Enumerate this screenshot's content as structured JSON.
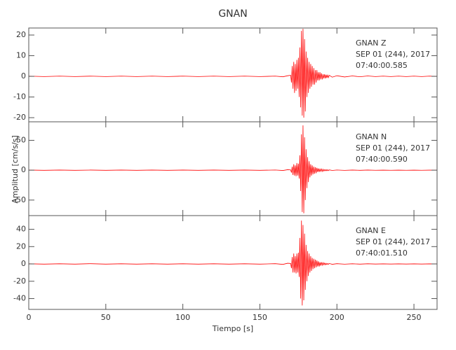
{
  "chart_data": [
    {
      "type": "line",
      "title": "GNAN",
      "annotations": [
        "GNAN   Z",
        "SEP 01 (244), 2017",
        "07:40:00.585"
      ],
      "x": [
        0,
        10,
        20,
        30,
        40,
        50,
        60,
        70,
        80,
        90,
        100,
        110,
        120,
        130,
        140,
        150,
        160,
        165,
        168,
        170,
        170.5,
        171,
        171.5,
        172,
        172.5,
        173,
        173.5,
        174,
        174.5,
        175,
        175.5,
        176,
        176.5,
        177,
        177.5,
        178,
        178.5,
        179,
        179.5,
        180,
        180.5,
        181,
        181.5,
        182,
        182.5,
        183,
        183.5,
        184,
        184.5,
        185,
        185.5,
        186,
        186.5,
        187,
        187.5,
        188,
        188.5,
        189,
        189.5,
        190,
        190.5,
        191,
        191.5,
        192,
        192.5,
        193,
        193.5,
        194,
        194.5,
        195,
        197,
        200,
        205,
        210,
        215,
        220,
        225,
        230,
        235,
        240,
        245,
        250,
        255,
        260,
        265
      ],
      "series": [
        {
          "color": "#ff0000",
          "values": [
            0.1,
            -0.1,
            0.1,
            -0.1,
            0.1,
            -0.1,
            0.1,
            -0.1,
            0.1,
            -0.1,
            0.1,
            -0.1,
            0.1,
            -0.1,
            0.1,
            -0.1,
            0.1,
            -0.2,
            0.3,
            0.5,
            -3,
            5,
            -6,
            7,
            -8,
            6,
            -7,
            8,
            -6,
            9,
            -10,
            14,
            -15,
            22,
            -19,
            23,
            -20,
            18,
            -17,
            12,
            -10,
            9,
            -8,
            7,
            -6,
            6,
            -5,
            5,
            -4,
            4,
            -4,
            3,
            -3,
            3,
            -2,
            2,
            -2,
            2,
            -1.5,
            1.5,
            -1.5,
            1,
            -1,
            1,
            -1,
            0.8,
            -0.8,
            0.6,
            -0.6,
            0.5,
            -0.4,
            0.3,
            -0.3,
            0.2,
            -0.2,
            0.2,
            -0.1,
            0.1,
            -0.1,
            0.1,
            -0.1,
            0.1,
            -0.1,
            0.1,
            0
          ]
        }
      ],
      "xlim": [
        0,
        265
      ],
      "ylim": [
        -22,
        23.4
      ],
      "yticks": [
        -20,
        -10,
        0,
        10,
        20
      ]
    },
    {
      "type": "line",
      "ylabel": "Amplitud [cm/s/s]",
      "annotations": [
        "GNAN   N",
        "SEP 01 (244), 2017",
        "07:40:00.590"
      ],
      "x": [
        0,
        10,
        20,
        30,
        40,
        50,
        60,
        70,
        80,
        90,
        100,
        110,
        120,
        130,
        140,
        150,
        160,
        165,
        168,
        170,
        170.5,
        171,
        171.5,
        172,
        172.5,
        173,
        173.5,
        174,
        174.5,
        175,
        175.5,
        176,
        176.5,
        177,
        177.5,
        178,
        178.5,
        179,
        179.5,
        180,
        180.5,
        181,
        181.5,
        182,
        182.5,
        183,
        183.5,
        184,
        184.5,
        185,
        185.5,
        186,
        186.5,
        187,
        187.5,
        188,
        188.5,
        189,
        189.5,
        190,
        190.5,
        191,
        191.5,
        192,
        192.5,
        193,
        193.5,
        194,
        194.5,
        195,
        197,
        200,
        205,
        210,
        215,
        220,
        225,
        230,
        235,
        240,
        245,
        250,
        255,
        260,
        265
      ],
      "series": [
        {
          "color": "#ff0000",
          "values": [
            0.2,
            -0.2,
            0.2,
            -0.2,
            0.2,
            -0.2,
            0.2,
            -0.2,
            0.2,
            -0.2,
            0.2,
            -0.2,
            0.2,
            -0.2,
            0.2,
            -0.2,
            0.3,
            -0.5,
            0.8,
            0.5,
            -4,
            6,
            -8,
            10,
            -9,
            8,
            -10,
            12,
            -9,
            11,
            -14,
            25,
            -35,
            60,
            -70,
            75,
            -72,
            55,
            -50,
            35,
            -30,
            22,
            -20,
            15,
            -12,
            10,
            -9,
            8,
            -7,
            6,
            -6,
            5,
            -5,
            4,
            -3,
            3,
            -3,
            2,
            -2,
            2,
            -2,
            1.5,
            -1.5,
            1,
            -1,
            1,
            -1,
            0.8,
            -0.8,
            0.5,
            -0.4,
            0.3,
            -0.3,
            0.2,
            -0.2,
            0.2,
            -0.1,
            0.1,
            -0.1,
            0.1,
            -0.1,
            0.1,
            -0.1,
            0.1,
            0
          ]
        }
      ],
      "xlim": [
        0,
        265
      ],
      "ylim": [
        -76,
        81
      ],
      "yticks": [
        -50,
        0,
        50
      ]
    },
    {
      "type": "line",
      "xlabel": "Tiempo [s]",
      "annotations": [
        "GNAN   E",
        "SEP 01 (244), 2017",
        "07:40:01.510"
      ],
      "x": [
        0,
        10,
        20,
        30,
        40,
        50,
        60,
        70,
        80,
        90,
        100,
        110,
        120,
        130,
        140,
        150,
        160,
        165,
        168,
        170,
        170.5,
        171,
        171.5,
        172,
        172.5,
        173,
        173.5,
        174,
        174.5,
        175,
        175.5,
        176,
        176.5,
        177,
        177.5,
        178,
        178.5,
        179,
        179.5,
        180,
        180.5,
        181,
        181.5,
        182,
        182.5,
        183,
        183.5,
        184,
        184.5,
        185,
        185.5,
        186,
        186.5,
        187,
        187.5,
        188,
        188.5,
        189,
        189.5,
        190,
        190.5,
        191,
        191.5,
        192,
        192.5,
        193,
        193.5,
        194,
        194.5,
        195,
        197,
        200,
        205,
        210,
        215,
        220,
        225,
        230,
        235,
        240,
        245,
        250,
        255,
        260,
        265
      ],
      "series": [
        {
          "color": "#ff0000",
          "values": [
            0.2,
            -0.2,
            0.2,
            -0.2,
            0.3,
            -0.2,
            0.2,
            -0.2,
            0.2,
            -0.2,
            0.2,
            -0.2,
            0.2,
            -0.2,
            0.2,
            -0.2,
            0.3,
            -0.5,
            0.8,
            0.5,
            -5,
            8,
            -10,
            12,
            -10,
            9,
            -11,
            12,
            -10,
            13,
            -15,
            30,
            -40,
            50,
            -48,
            45,
            -42,
            35,
            -30,
            22,
            -20,
            15,
            -14,
            12,
            -10,
            9,
            -8,
            7,
            -6,
            6,
            -5,
            5,
            -4,
            4,
            -3,
            3,
            -3,
            2,
            -2,
            2,
            -1.5,
            1.5,
            -1,
            1,
            -1,
            0.8,
            -0.8,
            0.6,
            -0.6,
            0.5,
            -0.4,
            0.3,
            -0.3,
            0.2,
            -0.2,
            0.2,
            -0.1,
            0.1,
            -0.1,
            0.1,
            -0.1,
            0.1,
            -0.1,
            0.1,
            0
          ]
        }
      ],
      "xlim": [
        0,
        265
      ],
      "ylim": [
        -52.5,
        55.8
      ],
      "yticks": [
        -40,
        -20,
        0,
        20,
        40
      ],
      "xticks": [
        0,
        50,
        100,
        150,
        200,
        250
      ]
    }
  ]
}
